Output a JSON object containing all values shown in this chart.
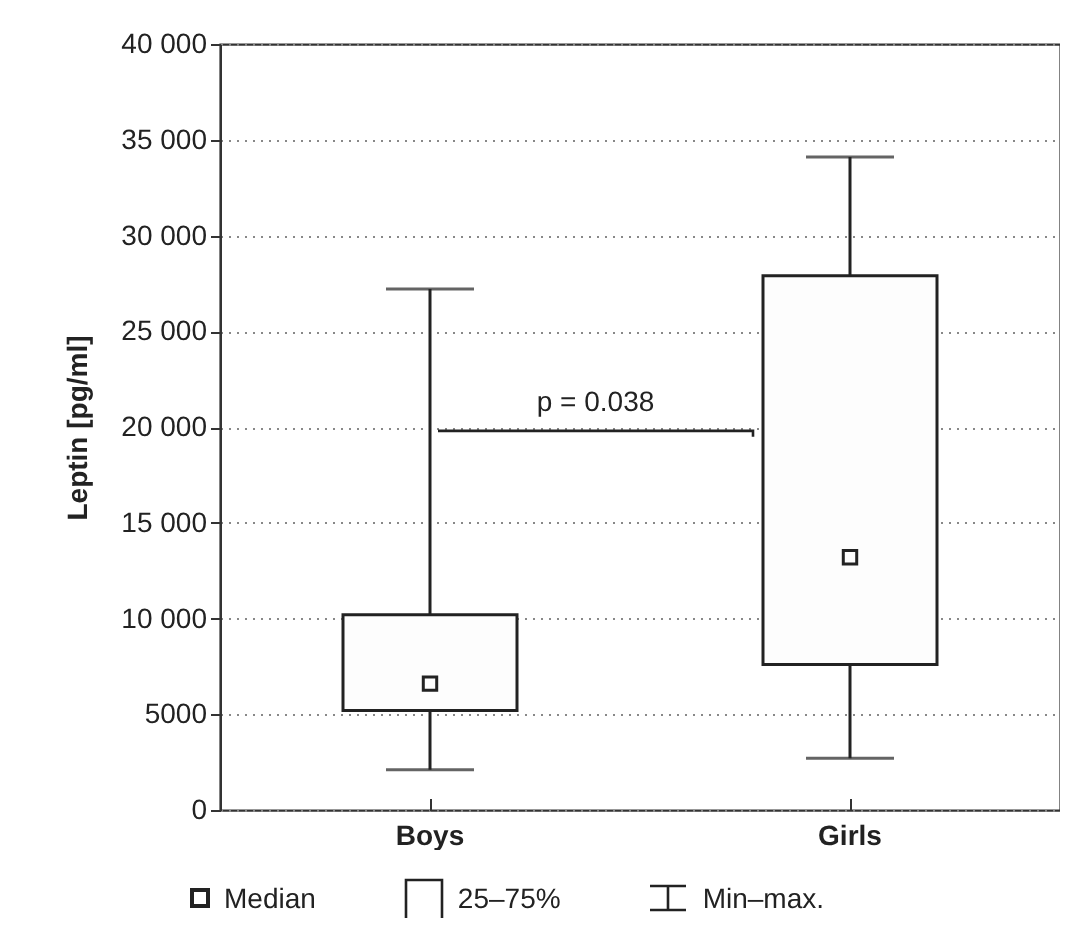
{
  "chart_data": {
    "type": "box",
    "ylabel": "Leptin [pg/ml]",
    "categories": [
      "Boys",
      "Girls"
    ],
    "boxes": [
      {
        "low": 2100,
        "q1": 5200,
        "median": 6600,
        "q3": 10200,
        "high": 27200
      },
      {
        "low": 2700,
        "q1": 7600,
        "median": 13200,
        "q3": 27900,
        "high": 34100
      }
    ],
    "ylim": [
      0,
      40000
    ],
    "yticks": [
      0,
      5000,
      {
        "value": 10000,
        "label": "10 000"
      },
      {
        "value": 15000,
        "label": "15 000"
      },
      {
        "value": 20000,
        "label": "20 000"
      },
      {
        "value": 25000,
        "label": "25 000"
      },
      {
        "value": 30000,
        "label": "30 000"
      },
      {
        "value": 35000,
        "label": "35 000"
      },
      {
        "value": 40000,
        "label": "40 000"
      }
    ],
    "grid": "y",
    "marker": "square",
    "annotations": [
      "p = 0.038",
      "Median",
      "25–75%",
      "Min–max."
    ]
  }
}
